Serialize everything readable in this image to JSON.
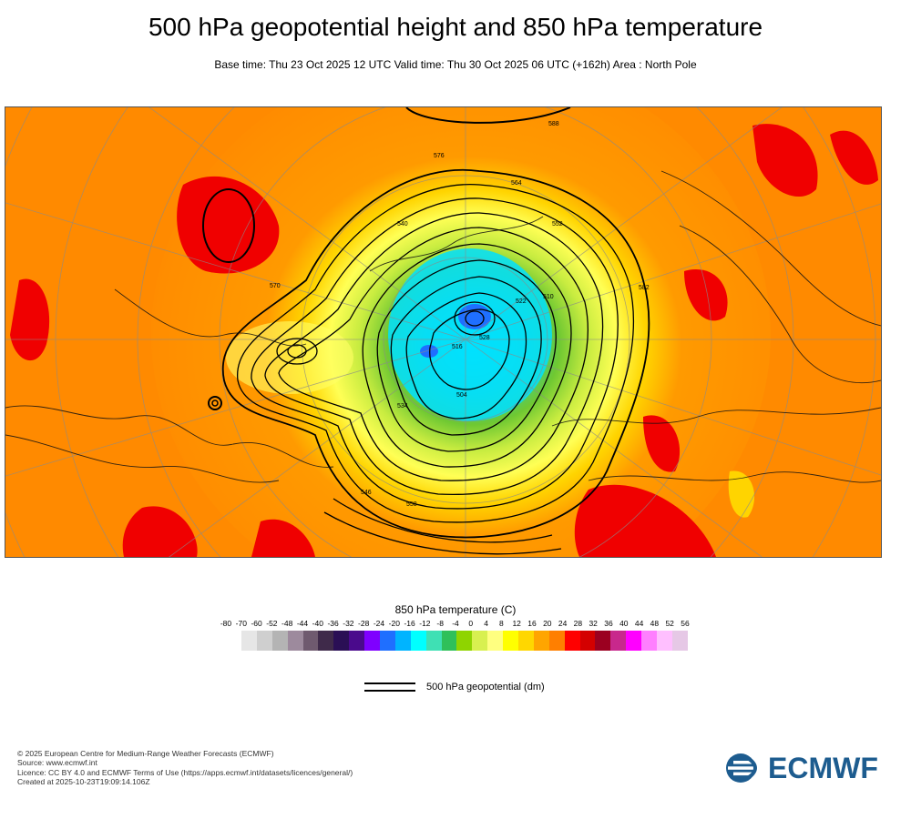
{
  "header": {
    "title": "500 hPa geopotential height and 850 hPa temperature",
    "subtitle": "Base time: Thu 23 Oct 2025 12 UTC Valid time: Thu 30 Oct 2025 06 UTC (+162h) Area : North Pole"
  },
  "map": {
    "contour_labels": [
      "576",
      "564",
      "552",
      "540",
      "528",
      "516",
      "522",
      "534",
      "546",
      "558",
      "570",
      "582",
      "588",
      "510",
      "504"
    ]
  },
  "legend": {
    "title": "850 hPa temperature (C)",
    "ticks": [
      "-80",
      "-70",
      "-60",
      "-52",
      "-48",
      "-44",
      "-40",
      "-36",
      "-32",
      "-28",
      "-24",
      "-20",
      "-16",
      "-12",
      "-8",
      "-4",
      "0",
      "4",
      "8",
      "12",
      "16",
      "20",
      "24",
      "28",
      "32",
      "36",
      "40",
      "44",
      "48",
      "52",
      "56"
    ],
    "colors": [
      "#e6e6e6",
      "#cfcfcf",
      "#b4b4b4",
      "#9d8a9d",
      "#6f5a6f",
      "#3f2a4a",
      "#2a0f55",
      "#4a0a8c",
      "#7f00ff",
      "#1f6fff",
      "#00b4ff",
      "#00ffff",
      "#3fe0b4",
      "#2fc05a",
      "#8fd400",
      "#d8f050",
      "#ffff80",
      "#ffff00",
      "#ffd700",
      "#ffa500",
      "#ff7f00",
      "#ff0000",
      "#d40000",
      "#9b0020",
      "#c8288c",
      "#ff00ff",
      "#ff7fff",
      "#ffbfff",
      "#e6c8e6"
    ],
    "geopotential_label": "500 hPa geopotential (dm)"
  },
  "footer": {
    "lines": [
      "© 2025 European Centre for Medium-Range Weather Forecasts (ECMWF)",
      "Source: www.ecmwf.int",
      "Licence: CC BY 4.0 and ECMWF Terms of Use (https://apps.ecmwf.int/datasets/licences/general/)",
      "Created at 2025-10-23T19:09:14.106Z"
    ],
    "logo_text": "ECMWF",
    "logo_color": "#1d5c8f"
  }
}
